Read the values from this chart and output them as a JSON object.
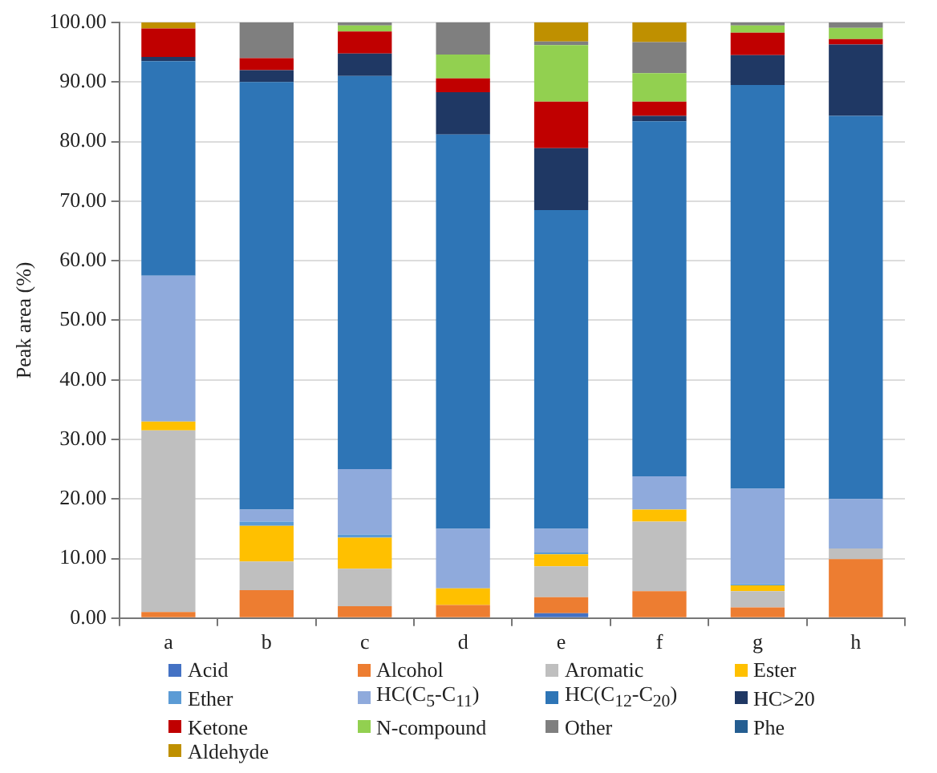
{
  "chart_data": {
    "type": "bar",
    "stacked": true,
    "ylabel": "Peak area (%)",
    "categories": [
      "a",
      "b",
      "c",
      "d",
      "e",
      "f",
      "g",
      "h"
    ],
    "ylim": [
      0,
      100
    ],
    "yticks": [
      {
        "value": 0,
        "label": "0.00"
      },
      {
        "value": 10,
        "label": "10.00"
      },
      {
        "value": 20,
        "label": "20.00"
      },
      {
        "value": 30,
        "label": "30.00"
      },
      {
        "value": 40,
        "label": "40.00"
      },
      {
        "value": 50,
        "label": "50.00"
      },
      {
        "value": 60,
        "label": "60.00"
      },
      {
        "value": 70,
        "label": "70.00"
      },
      {
        "value": 80,
        "label": "80.00"
      },
      {
        "value": 90,
        "label": "90.00"
      },
      {
        "value": 100,
        "label": "100.00"
      }
    ],
    "grid": "y",
    "legend": "bottom",
    "series": [
      {
        "name": "Acid",
        "color": "#4472c4",
        "values": [
          0,
          0,
          0,
          0,
          0.8,
          0,
          0,
          0
        ]
      },
      {
        "name": "Alcohol",
        "color": "#ed7d31",
        "values": [
          1,
          4.7,
          2,
          2.2,
          2.7,
          4.5,
          1.8,
          9.9
        ]
      },
      {
        "name": "Aromatic",
        "color": "#bfbfbf",
        "values": [
          30.5,
          4.8,
          6.3,
          null,
          5.2,
          11.7,
          2.7,
          1.8
        ]
      },
      {
        "name": "Ester",
        "color": "#ffc000",
        "values": [
          1.5,
          6,
          5.2,
          2.8,
          2,
          2,
          1,
          0
        ]
      },
      {
        "name": "Ether",
        "color": "#5b9bd5",
        "values": [
          0,
          0.7,
          0.5,
          0,
          0.3,
          0,
          0.2,
          0
        ]
      },
      {
        "name": "HC(C$_{5}$-C$_{11}$)",
        "color": "#8faadc",
        "values": [
          24.5,
          2,
          11,
          10,
          4,
          5.6,
          16,
          8.3
        ]
      },
      {
        "name": "HC(C$_{12}$-C$_{20}$)",
        "color": "#2e75b6",
        "values": [
          36,
          71.8,
          66,
          66.2,
          53.5,
          59.6,
          67.8,
          64.3
        ]
      },
      {
        "name": "HC>20",
        "color": "#1f3864",
        "values": [
          0.7,
          2,
          3.8,
          7.1,
          10.4,
          0.9,
          5,
          12
        ]
      },
      {
        "name": "Ketone",
        "color": "#c00000",
        "values": [
          4.8,
          2,
          3.7,
          2.3,
          7.8,
          2.4,
          3.8,
          0.9
        ]
      },
      {
        "name": "N-compound",
        "color": "#92d050",
        "values": [
          0,
          0,
          1,
          4,
          9.5,
          4.8,
          1.2,
          1.9
        ]
      },
      {
        "name": "Other",
        "color": "#7f7f7f",
        "values": [
          0,
          6,
          0.5,
          5.4,
          0.6,
          5.2,
          0.5,
          0.9
        ]
      },
      {
        "name": "Phe",
        "color": "#255e91",
        "values": [
          0,
          0,
          0,
          0,
          0,
          0,
          0,
          0
        ]
      },
      {
        "name": "Aldehyde",
        "color": "#bf9000",
        "values": [
          1,
          0,
          0,
          0,
          3.2,
          3.3,
          0,
          0
        ]
      }
    ]
  }
}
